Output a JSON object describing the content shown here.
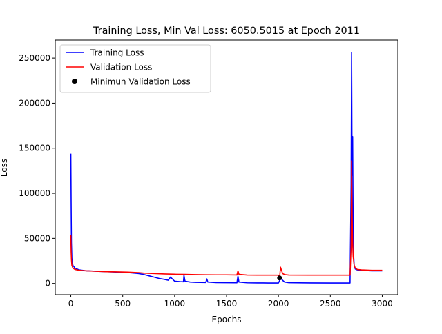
{
  "chart_data": {
    "type": "line",
    "title": "Training Loss, Min Val Loss: 6050.5015 at Epoch 2011",
    "xlabel": "Epochs",
    "ylabel": "Loss",
    "xlim": [
      -150,
      3150
    ],
    "ylim": [
      -12500,
      270000
    ],
    "xticks": [
      0,
      500,
      1000,
      1500,
      2000,
      2500,
      3000
    ],
    "yticks": [
      0,
      50000,
      100000,
      150000,
      200000,
      250000
    ],
    "grid": false,
    "legend_position": "top-left",
    "legend": [
      {
        "label": "Training Loss",
        "kind": "line",
        "color": "#0000ff"
      },
      {
        "label": "Validation Loss",
        "kind": "line",
        "color": "#ff0000"
      },
      {
        "label": "Minimun Validation Loss",
        "kind": "marker",
        "color": "#000000"
      }
    ],
    "series": [
      {
        "name": "Training Loss",
        "color": "#0000ff",
        "x": [
          0,
          3,
          6,
          10,
          20,
          40,
          80,
          150,
          250,
          350,
          450,
          550,
          650,
          700,
          750,
          800,
          850,
          900,
          940,
          960,
          1000,
          1050,
          1085,
          1090,
          1100,
          1150,
          1200,
          1300,
          1310,
          1320,
          1400,
          1500,
          1600,
          1610,
          1620,
          1700,
          1800,
          1900,
          2000,
          2011,
          2020,
          2040,
          2060,
          2100,
          2300,
          2500,
          2600,
          2690,
          2700,
          2705,
          2710,
          2715,
          2720,
          2725,
          2730,
          2740,
          2760,
          2800,
          2900,
          3000
        ],
        "y": [
          144000,
          90000,
          45000,
          28000,
          20000,
          17000,
          15000,
          14000,
          13500,
          13000,
          12500,
          12000,
          11000,
          10000,
          8500,
          7000,
          5500,
          4500,
          3500,
          7000,
          2500,
          2000,
          1800,
          9000,
          2500,
          1500,
          1200,
          1000,
          5000,
          1500,
          900,
          800,
          700,
          8000,
          1500,
          700,
          600,
          500,
          500,
          3000,
          6000,
          3500,
          1500,
          800,
          600,
          500,
          500,
          500,
          110000,
          256000,
          120000,
          163000,
          60000,
          30000,
          20000,
          16000,
          15000,
          14500,
          14000,
          14000
        ]
      },
      {
        "name": "Validation Loss",
        "color": "#ff0000",
        "x": [
          0,
          3,
          6,
          10,
          20,
          40,
          80,
          150,
          250,
          350,
          450,
          550,
          650,
          700,
          800,
          900,
          1000,
          1100,
          1200,
          1300,
          1400,
          1500,
          1600,
          1610,
          1620,
          1700,
          1800,
          1900,
          2000,
          2011,
          2020,
          2040,
          2060,
          2100,
          2300,
          2500,
          2600,
          2690,
          2700,
          2705,
          2710,
          2715,
          2720,
          2730,
          2740,
          2760,
          2800,
          2900,
          3000
        ],
        "y": [
          54000,
          35000,
          26000,
          20000,
          17000,
          15500,
          14500,
          14000,
          13500,
          13000,
          12800,
          12500,
          12000,
          11500,
          11000,
          10500,
          10200,
          10000,
          9800,
          9600,
          9500,
          9500,
          9400,
          14000,
          10000,
          9300,
          9200,
          9200,
          9200,
          6050.5015,
          18000,
          11000,
          9800,
          9300,
          9200,
          9200,
          9200,
          9200,
          40000,
          136000,
          76000,
          45000,
          30000,
          20000,
          17000,
          15500,
          15000,
          14500,
          14500
        ]
      }
    ],
    "min_point": {
      "x": 2011,
      "y": 6050.5015
    }
  }
}
